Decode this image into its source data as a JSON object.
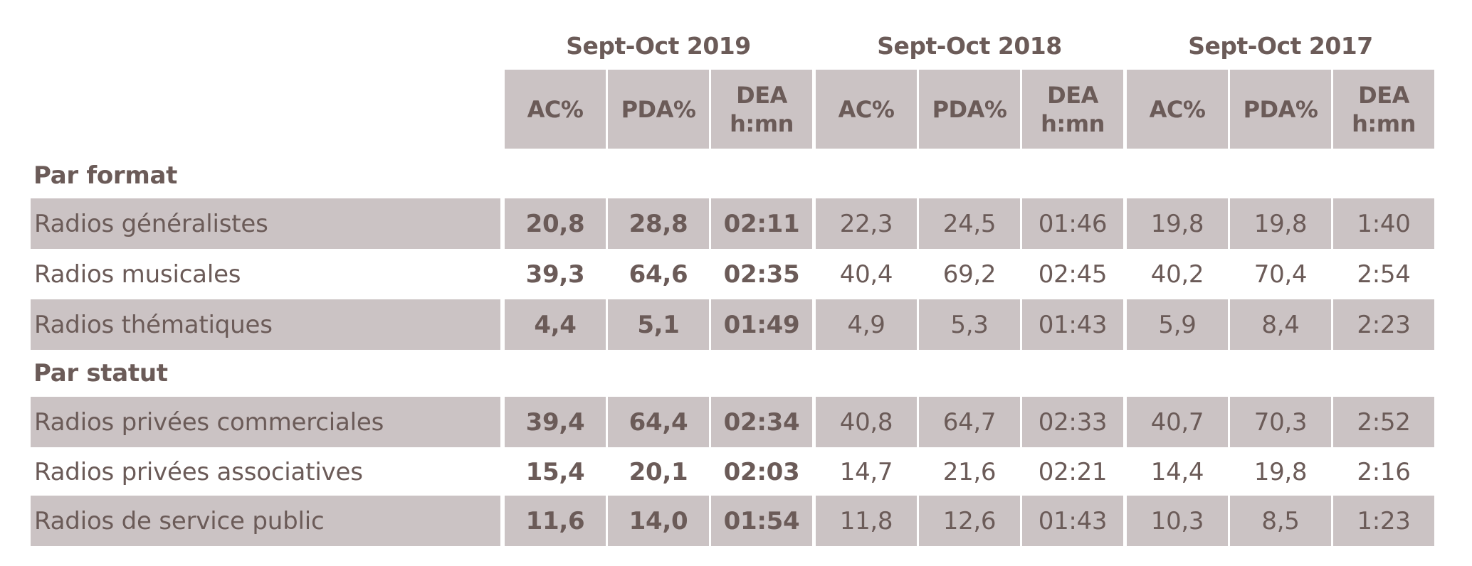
{
  "periods": [
    {
      "label": "Sept-Oct 2019",
      "highlight": true
    },
    {
      "label": "Sept-Oct 2018",
      "highlight": false
    },
    {
      "label": "Sept-Oct 2017",
      "highlight": false
    }
  ],
  "column_headers": [
    {
      "line1": "AC%",
      "line2": ""
    },
    {
      "line1": "PDA%",
      "line2": ""
    },
    {
      "line1": "DEA",
      "line2": "h:mn"
    }
  ],
  "colors": {
    "text": "#6b5b58",
    "shade": "#cbc3c4",
    "background": "#ffffff"
  },
  "sections": [
    {
      "title": "Par format",
      "rows": [
        {
          "label": "Radios généralistes",
          "shaded": true,
          "values": [
            "20,8",
            "28,8",
            "02:11",
            "22,3",
            "24,5",
            "01:46",
            "19,8",
            "19,8",
            "1:40"
          ]
        },
        {
          "label": "Radios musicales",
          "shaded": false,
          "values": [
            "39,3",
            "64,6",
            "02:35",
            "40,4",
            "69,2",
            "02:45",
            "40,2",
            "70,4",
            "2:54"
          ]
        },
        {
          "label": "Radios thématiques",
          "shaded": true,
          "values": [
            "4,4",
            "5,1",
            "01:49",
            "4,9",
            "5,3",
            "01:43",
            "5,9",
            "8,4",
            "2:23"
          ]
        }
      ]
    },
    {
      "title": "Par statut",
      "rows": [
        {
          "label": "Radios privées commerciales",
          "shaded": true,
          "values": [
            "39,4",
            "64,4",
            "02:34",
            "40,8",
            "64,7",
            "02:33",
            "40,7",
            "70,3",
            "2:52"
          ]
        },
        {
          "label": "Radios privées associatives",
          "shaded": false,
          "values": [
            "15,4",
            "20,1",
            "02:03",
            "14,7",
            "21,6",
            "02:21",
            "14,4",
            "19,8",
            "2:16"
          ]
        },
        {
          "label": "Radios de service public",
          "shaded": true,
          "values": [
            "11,6",
            "14,0",
            "01:54",
            "11,8",
            "12,6",
            "01:43",
            "10,3",
            "8,5",
            "1:23"
          ]
        }
      ]
    }
  ]
}
